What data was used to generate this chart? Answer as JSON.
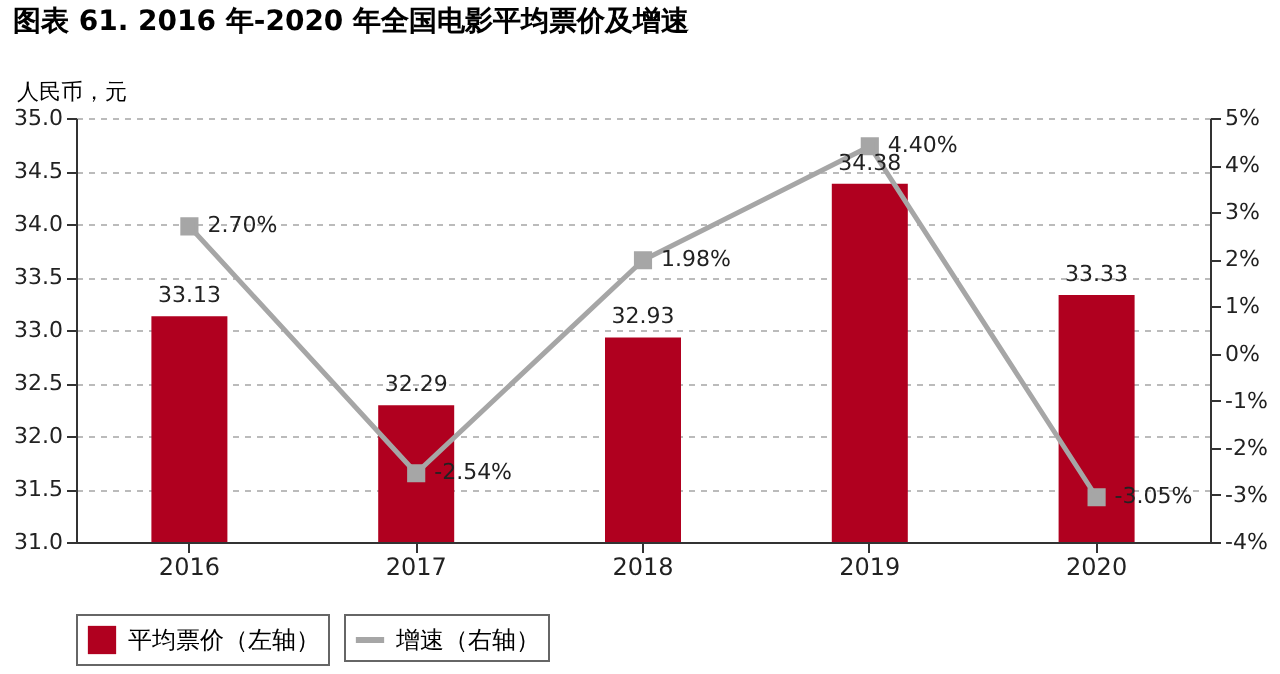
{
  "chart_data": {
    "type": "bar",
    "title": "图表 61. 2016 年-2020 年全国电影平均票价及增速",
    "ylabel": "人民币，元",
    "categories": [
      "2016",
      "2017",
      "2018",
      "2019",
      "2020"
    ],
    "series": [
      {
        "name": "平均票价（左轴）",
        "color": "#b0001f",
        "values": [
          33.13,
          32.29,
          32.93,
          34.38,
          33.33
        ],
        "value_labels": [
          "33.13",
          "32.29",
          "32.93",
          "34.38",
          "33.33"
        ]
      },
      {
        "name": "增速（右轴）",
        "type": "line",
        "axis": "y2",
        "color": "#a6a6a6",
        "marker": "square",
        "values": [
          2.7,
          -2.54,
          1.98,
          4.4,
          -3.05
        ],
        "value_labels": [
          "2.70%",
          "-2.54%",
          "1.98%",
          "4.40%",
          "-3.05%"
        ]
      }
    ],
    "ylim": [
      31,
      35
    ],
    "yticks": [
      {
        "value": 31,
        "label": "31.0"
      },
      {
        "value": 31.5,
        "label": "31.5"
      },
      {
        "value": 32,
        "label": "32.0"
      },
      {
        "value": 32.5,
        "label": "32.5"
      },
      {
        "value": 33,
        "label": "33.0"
      },
      {
        "value": 33.5,
        "label": "33.5"
      },
      {
        "value": 34,
        "label": "34.0"
      },
      {
        "value": 34.5,
        "label": "34.5"
      },
      {
        "value": 35,
        "label": "35.0"
      }
    ],
    "y2lim": [
      -4,
      5
    ],
    "y2ticks": [
      {
        "value": -4,
        "label": "-4%"
      },
      {
        "value": -3,
        "label": "-3%"
      },
      {
        "value": -2,
        "label": "-2%"
      },
      {
        "value": -1,
        "label": "-1%"
      },
      {
        "value": 0,
        "label": "0%"
      },
      {
        "value": 1,
        "label": "1%"
      },
      {
        "value": 2,
        "label": "2%"
      },
      {
        "value": 3,
        "label": "3%"
      },
      {
        "value": 4,
        "label": "4%"
      },
      {
        "value": 5,
        "label": "5%"
      }
    ],
    "grid": "y",
    "legend": "bottom"
  }
}
